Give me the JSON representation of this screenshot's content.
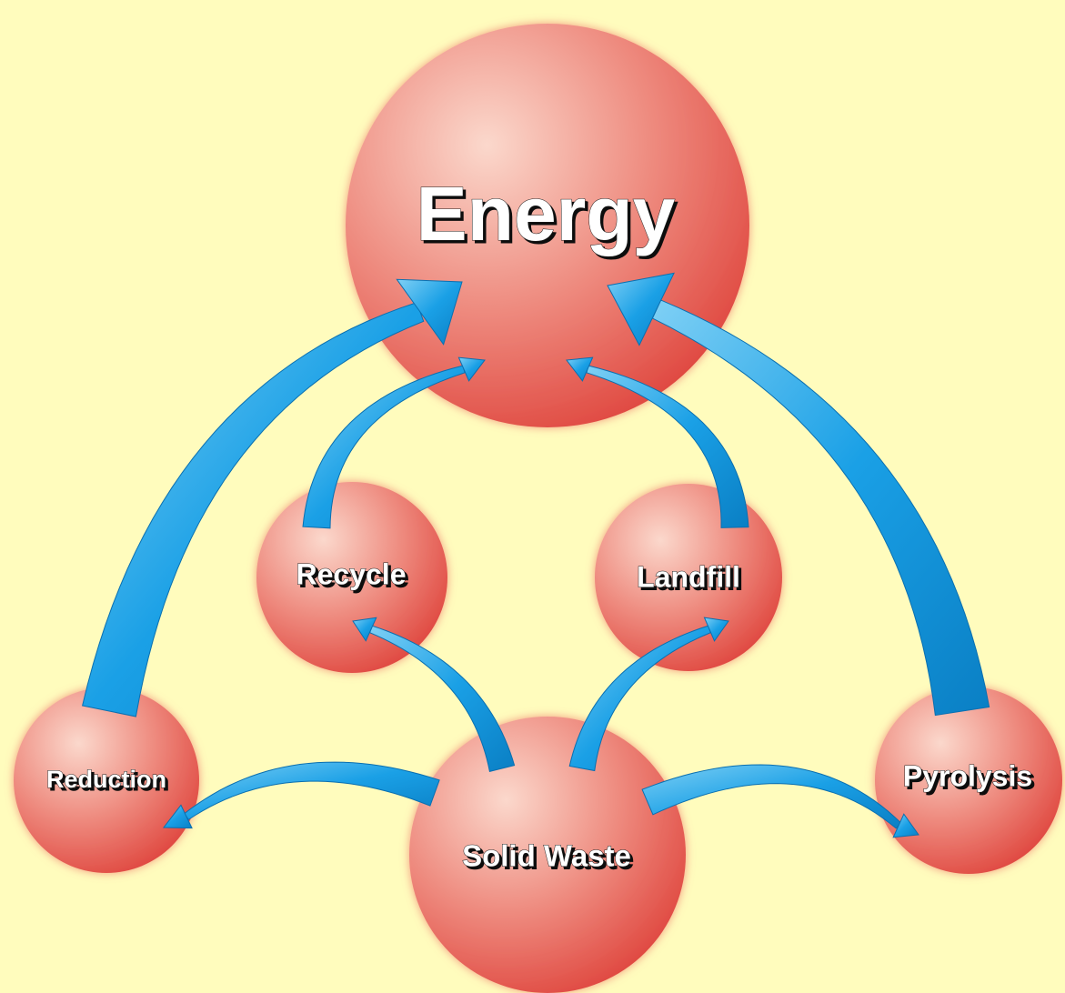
{
  "nodes": [
    {
      "label": "Energy"
    },
    {
      "label": "Recycle"
    },
    {
      "label": "Landfill"
    },
    {
      "label": "Reduction"
    },
    {
      "label": "Solid Waste"
    },
    {
      "label": "Pyrolysis"
    }
  ]
}
